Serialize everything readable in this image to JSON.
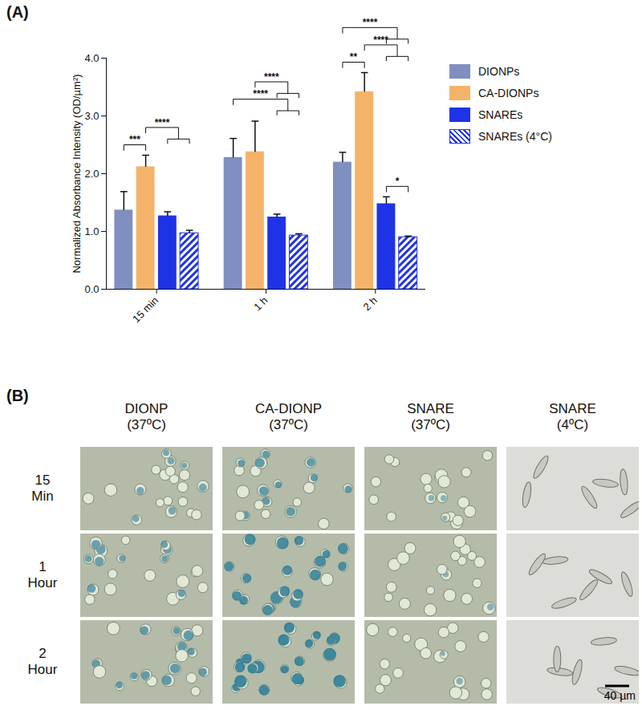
{
  "chart_data": {
    "type": "bar",
    "title": "(A)",
    "y_label": "Normalized Absorbance Intensity (OD/µm²)",
    "categories": [
      "15 min",
      "1 h",
      "2 h"
    ],
    "ylim": [
      0,
      4
    ],
    "yticks": [
      0,
      1,
      2,
      3,
      4
    ],
    "legend": "right",
    "series": [
      {
        "name": "DIONPs",
        "color": "#7f8fc0",
        "values": [
          1.37,
          2.28,
          2.2
        ],
        "errors": [
          0.32,
          0.33,
          0.17
        ]
      },
      {
        "name": "CA-DIONPs",
        "color": "#f5b36a",
        "values": [
          2.12,
          2.38,
          3.42
        ],
        "errors": [
          0.2,
          0.53,
          0.33
        ]
      },
      {
        "name": "SNAREs",
        "color": "#1f33e6",
        "values": [
          1.27,
          1.25,
          1.48
        ],
        "errors": [
          0.07,
          0.05,
          0.12
        ]
      },
      {
        "name": "SNAREs (4°C)",
        "color": "#1f33e6",
        "marker": "hatch",
        "values": [
          0.97,
          0.93,
          0.9
        ],
        "errors": [
          0.05,
          0.03,
          0.02
        ]
      }
    ],
    "annotations": [
      {
        "category": "15 min",
        "from": [
          "DIONPs"
        ],
        "to": [
          "CA-DIONPs"
        ],
        "label": "***"
      },
      {
        "category": "15 min",
        "from": [
          "CA-DIONPs"
        ],
        "to": [
          "SNAREs",
          "SNAREs (4°C)"
        ],
        "label": "****"
      },
      {
        "category": "1 h",
        "from": [
          "DIONPs"
        ],
        "to": [
          "SNAREs",
          "SNAREs (4°C)"
        ],
        "label": "****"
      },
      {
        "category": "1 h",
        "from": [
          "CA-DIONPs"
        ],
        "to": [
          "SNAREs",
          "SNAREs (4°C)"
        ],
        "label": "****"
      },
      {
        "category": "2 h",
        "from": [
          "SNAREs"
        ],
        "to": [
          "SNAREs (4°C)"
        ],
        "label": "*"
      },
      {
        "category": "2 h",
        "from": [
          "DIONPs"
        ],
        "to": [
          "CA-DIONPs"
        ],
        "label": "**"
      },
      {
        "category": "2 h",
        "from": [
          "CA-DIONPs"
        ],
        "to": [
          "SNAREs",
          "SNAREs (4°C)"
        ],
        "label": "****"
      },
      {
        "category": "2 h",
        "from": [
          "DIONPs"
        ],
        "to": [
          "SNAREs",
          "SNAREs (4°C)"
        ],
        "label": "****"
      }
    ]
  },
  "micrograph_panel": {
    "title": "(B)",
    "columns": [
      [
        "DIONP",
        "(37ºC)"
      ],
      [
        "CA-DIONP",
        "(37ºC)"
      ],
      [
        "SNARE",
        "(37ºC)"
      ],
      [
        "SNARE",
        "(4ºC)"
      ]
    ],
    "rows": [
      [
        "15",
        "Min"
      ],
      [
        "1",
        "Hour"
      ],
      [
        "2",
        "Hour"
      ]
    ],
    "scale_bar": "40 µm"
  }
}
